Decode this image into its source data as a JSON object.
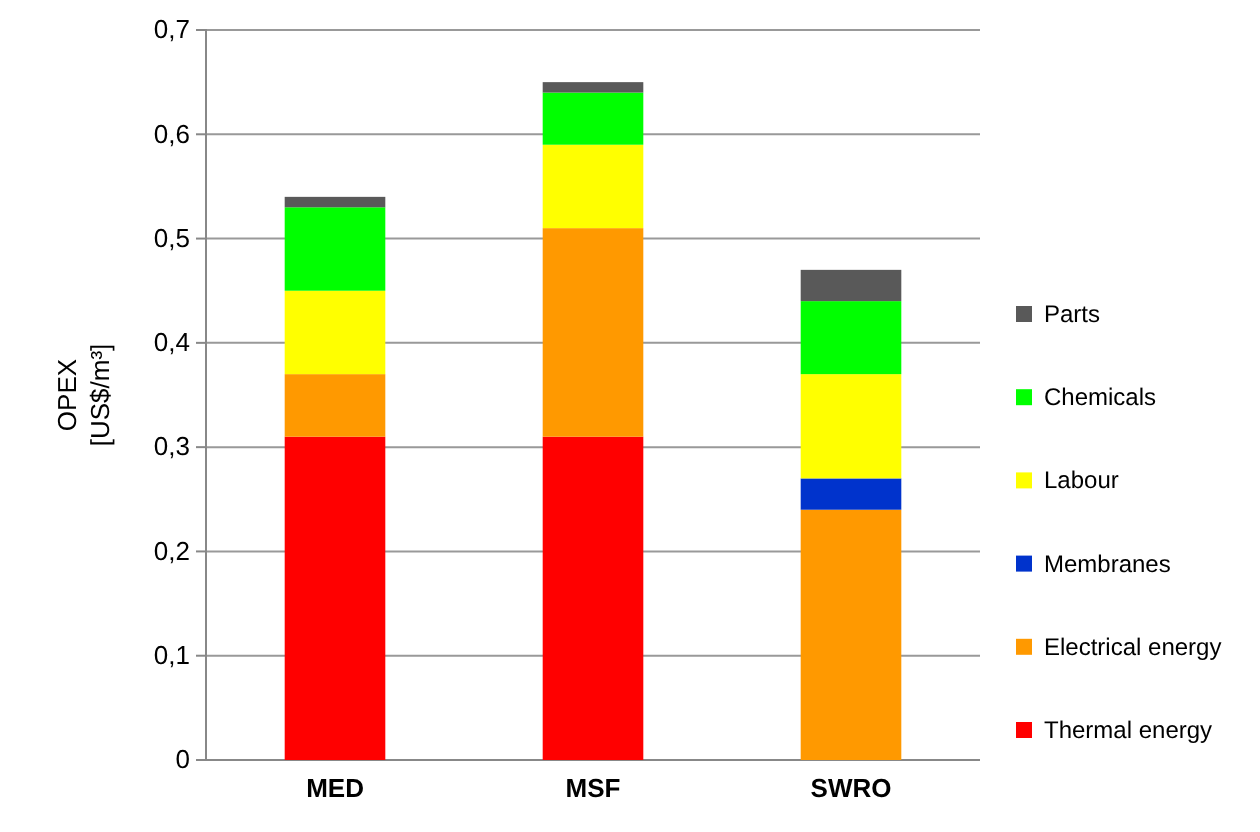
{
  "chart_data": {
    "type": "bar",
    "stacked": true,
    "ylabel": "OPEX\n[US$/m³]",
    "categories": [
      "MED",
      "MSF",
      "SWRO"
    ],
    "series": [
      {
        "name": "Thermal energy",
        "color": "#ff0000",
        "values": [
          0.31,
          0.31,
          0
        ]
      },
      {
        "name": "Electrical energy",
        "color": "#ff9900",
        "values": [
          0.06,
          0.2,
          0.24
        ]
      },
      {
        "name": "Membranes",
        "color": "#0033cc",
        "values": [
          0,
          0,
          0.03
        ]
      },
      {
        "name": "Labour",
        "color": "#ffff00",
        "values": [
          0.08,
          0.08,
          0.1
        ]
      },
      {
        "name": "Chemicals",
        "color": "#00ff00",
        "values": [
          0.08,
          0.05,
          0.07
        ]
      },
      {
        "name": "Parts",
        "color": "#595959",
        "values": [
          0.01,
          0.01,
          0.03
        ]
      }
    ],
    "ylim": [
      0,
      0.7
    ],
    "yticks": [
      0,
      {
        "value": 0.1,
        "label": "0,1"
      },
      {
        "value": 0.2,
        "label": "0,2"
      },
      {
        "value": 0.3,
        "label": "0,3"
      },
      {
        "value": 0.4,
        "label": "0,4"
      },
      {
        "value": 0.5,
        "label": "0,5"
      },
      {
        "value": 0.6,
        "label": "0,6"
      },
      {
        "value": 0.7,
        "label": "0,7"
      }
    ],
    "grid": "y",
    "legend": "right"
  }
}
